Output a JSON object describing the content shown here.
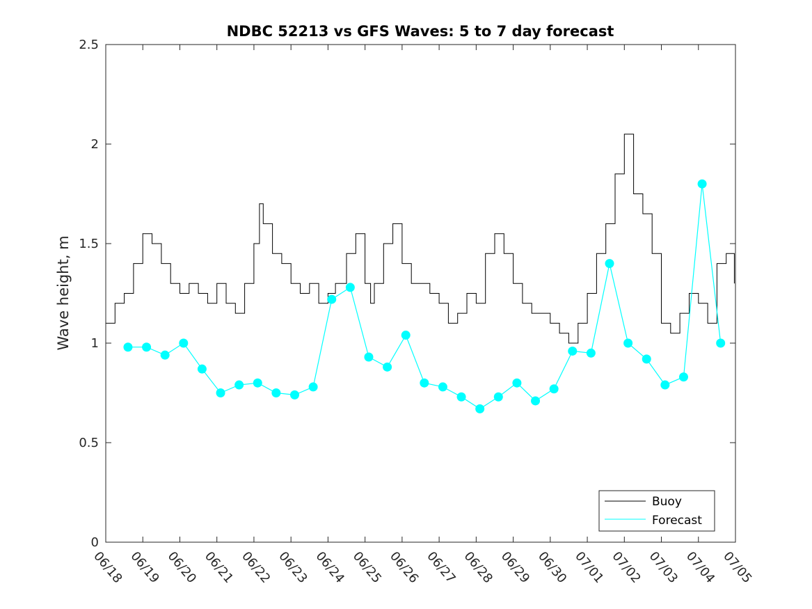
{
  "chart_data": {
    "type": "line",
    "title": "NDBC 52213 vs GFS Waves: 5 to 7 day forecast",
    "xlabel": "",
    "ylabel": "Wave height, m",
    "xlim": [
      "06/18",
      "07/05"
    ],
    "ylim": [
      0,
      2.5
    ],
    "y_ticks": [
      "0",
      "0.5",
      "1",
      "1.5",
      "2",
      "2.5"
    ],
    "x_ticks": [
      "06/18",
      "06/19",
      "06/20",
      "06/21",
      "06/22",
      "06/23",
      "06/24",
      "06/25",
      "06/26",
      "06/27",
      "06/28",
      "06/29",
      "06/30",
      "07/01",
      "07/02",
      "07/03",
      "07/04",
      "07/05"
    ],
    "legend": {
      "placement": "bottom-right",
      "entries": [
        "Buoy",
        "Forecast"
      ]
    },
    "colors": {
      "buoy": "#000000",
      "forecast": "#00ffff"
    },
    "x_unit": "days after 06/18",
    "series": [
      {
        "name": "Buoy",
        "x": [
          0.0,
          0.25,
          0.5,
          0.75,
          1.0,
          1.25,
          1.5,
          1.75,
          2.0,
          2.25,
          2.5,
          2.75,
          3.0,
          3.25,
          3.5,
          3.75,
          4.0,
          4.15,
          4.25,
          4.5,
          4.75,
          5.0,
          5.25,
          5.5,
          5.75,
          6.0,
          6.2,
          6.5,
          6.75,
          7.0,
          7.15,
          7.25,
          7.5,
          7.75,
          8.0,
          8.25,
          8.5,
          8.75,
          9.0,
          9.25,
          9.5,
          9.75,
          10.0,
          10.25,
          10.5,
          10.75,
          11.0,
          11.25,
          11.5,
          11.75,
          12.0,
          12.25,
          12.5,
          12.75,
          13.0,
          13.25,
          13.5,
          13.75,
          14.0,
          14.25,
          14.5,
          14.75,
          15.0,
          15.25,
          15.5,
          15.75,
          16.0,
          16.25,
          16.5,
          16.75,
          16.97
        ],
        "values": [
          1.1,
          1.2,
          1.25,
          1.4,
          1.55,
          1.5,
          1.4,
          1.3,
          1.25,
          1.3,
          1.25,
          1.2,
          1.3,
          1.2,
          1.15,
          1.3,
          1.5,
          1.7,
          1.6,
          1.45,
          1.4,
          1.3,
          1.25,
          1.3,
          1.2,
          1.25,
          1.3,
          1.45,
          1.55,
          1.3,
          1.2,
          1.3,
          1.5,
          1.6,
          1.4,
          1.3,
          1.3,
          1.25,
          1.2,
          1.1,
          1.15,
          1.25,
          1.2,
          1.45,
          1.55,
          1.45,
          1.3,
          1.2,
          1.15,
          1.15,
          1.1,
          1.05,
          1.0,
          1.1,
          1.25,
          1.45,
          1.6,
          1.85,
          2.05,
          1.75,
          1.65,
          1.45,
          1.1,
          1.05,
          1.15,
          1.25,
          1.2,
          1.1,
          1.4,
          1.45,
          1.3
        ]
      },
      {
        "name": "Forecast",
        "x": [
          0.6,
          1.1,
          1.6,
          2.1,
          2.6,
          3.1,
          3.6,
          4.1,
          4.6,
          5.1,
          5.6,
          6.1,
          6.6,
          7.1,
          7.6,
          8.1,
          8.6,
          9.1,
          9.6,
          10.1,
          10.6,
          11.1,
          11.6,
          12.1,
          12.6,
          13.1,
          13.6,
          14.1,
          14.6,
          15.1,
          15.6,
          16.1,
          16.6
        ],
        "values": [
          0.98,
          0.98,
          0.94,
          1.0,
          0.87,
          0.75,
          0.79,
          0.8,
          0.75,
          0.74,
          0.78,
          1.22,
          1.28,
          0.93,
          0.88,
          1.04,
          0.8,
          0.78,
          0.73,
          0.67,
          0.73,
          0.8,
          0.71,
          0.77,
          0.96,
          0.95,
          1.4,
          1.0,
          0.92,
          0.79,
          0.83,
          1.8,
          1.0
        ]
      }
    ]
  }
}
